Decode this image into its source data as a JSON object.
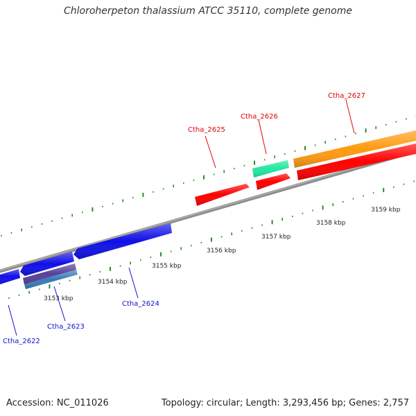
{
  "title": "Chloroherpeton thalassium ATCC 35110, complete genome",
  "footer": {
    "accession": "Accession: NC_011026",
    "summary": "Topology: circular; Length: 3,293,456 bp; Genes: 2,757"
  },
  "colors": {
    "backbone": "#8c8c8c",
    "tick": "#2a8a2a",
    "forward_label": "#e00000",
    "reverse_label": "#1010cc",
    "gene_red": "#ff0000",
    "gene_orange": "#ff9a10",
    "gene_green": "#22e8a0",
    "gene_blue": "#1010e8",
    "gene_purple": "#55409a",
    "gene_steel": "#3a7ab8"
  },
  "scale": {
    "tick_labels": [
      "3153 kbp",
      "3154 kbp",
      "3155 kbp",
      "3156 kbp",
      "3157 kbp",
      "3158 kbp",
      "3159 kbp"
    ]
  },
  "gene_labels": {
    "top": [
      "Ctha_2625",
      "Ctha_2626",
      "Ctha_2627"
    ],
    "bottom": [
      "Ctha_2622",
      "Ctha_2623",
      "Ctha_2624"
    ]
  }
}
